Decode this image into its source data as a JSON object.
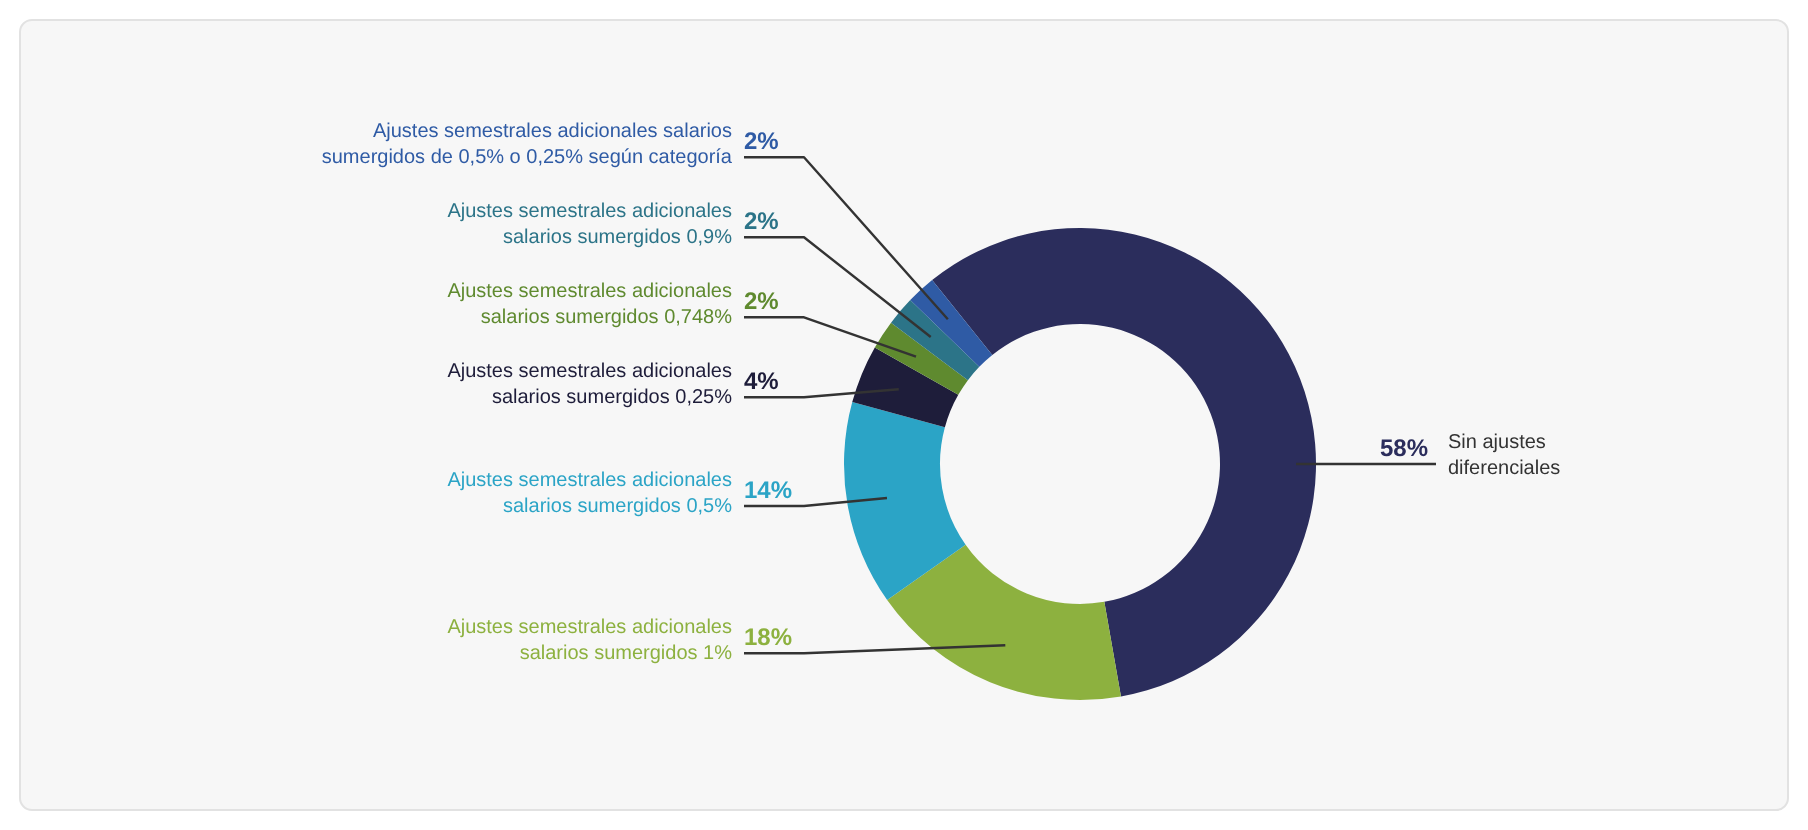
{
  "chart_data": {
    "type": "donut",
    "categories": [
      "Sin ajustes diferenciales",
      "Ajustes semestrales adicionales salarios sumergidos 1%",
      "Ajustes semestrales adicionales salarios sumergidos 0,5%",
      "Ajustes semestrales adicionales salarios sumergidos 0,25%",
      "Ajustes semestrales adicionales salarios sumergidos 0,748%",
      "Ajustes semestrales adicionales salarios sumergidos 0,9%",
      "Ajustes semestrales adicionales salarios sumergidos de 0,5% o 0,25% según categoría"
    ],
    "values": [
      58,
      18,
      14,
      4,
      2,
      2,
      2
    ],
    "value_labels": [
      "58%",
      "18%",
      "14%",
      "4%",
      "2%",
      "2%",
      "2%"
    ],
    "colors": [
      "#2b2d5c",
      "#8db13f",
      "#2ba4c6",
      "#1e1d3a",
      "#5f8a2f",
      "#2c7488",
      "#2f5ba5"
    ]
  }
}
